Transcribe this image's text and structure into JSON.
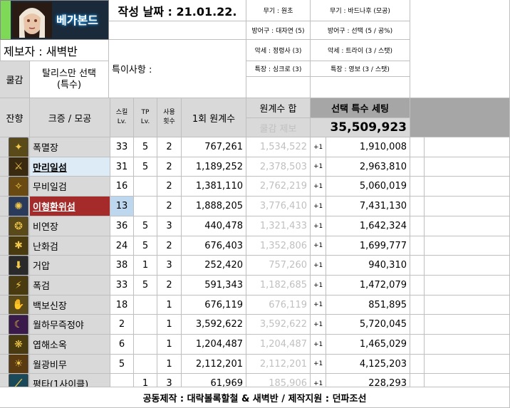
{
  "header": {
    "logo_text": "베가본드",
    "date_label": "작성 날짜 : 21.01.22.",
    "reporter_label": "제보자 : 새벽반",
    "note_label": "특이사항 :",
    "cool_label": "쿨감",
    "cool_value": "탈리스만 선택\n(특수)",
    "equip": [
      {
        "left": "무기 : 원초",
        "right": "무기 : 바드나후 (모공)"
      },
      {
        "left": "방어구 : 대자연 (5)",
        "right": "방어구 : 선택 (5 / 공%)"
      },
      {
        "left": "악세 : 정령사 (3)",
        "right": "악세 : 트라이 (3 / 스탯)"
      },
      {
        "left": "특장 : 싱크로 (3)",
        "right": "특장 : 영보 (3 / 스탯)"
      }
    ]
  },
  "columns": {
    "remain": "잔향",
    "skill": "크증 / 모공",
    "skill_lv": "스킬\nLv.",
    "tp_lv": "TP\nLv.",
    "use_count": "사용\n횟수",
    "one_coeff": "1회 원계수",
    "sum_coeff": "원계수 합",
    "cool_report": "쿨감 제보",
    "selected_set": "선택 특수 세팅",
    "total": "35,509,923"
  },
  "rows": [
    {
      "name": "폭멸장",
      "lv": "33",
      "tp": "5",
      "uses": "2",
      "one": "767,261",
      "sum": "1,534,522",
      "plus": "+1",
      "val": "1,910,008",
      "style": "normal",
      "icon": "✦",
      "icon_bg": "#5a4a1a"
    },
    {
      "name": "만리일섬",
      "lv": "31",
      "tp": "5",
      "uses": "2",
      "one": "1,189,252",
      "sum": "2,378,503",
      "plus": "+1",
      "val": "2,963,810",
      "style": "blue",
      "icon": "⚔",
      "icon_bg": "#3a2a10"
    },
    {
      "name": "무비일검",
      "lv": "16",
      "tp": "",
      "uses": "2",
      "one": "1,381,110",
      "sum": "2,762,219",
      "plus": "+1",
      "val": "5,060,019",
      "style": "normal",
      "icon": "✧",
      "icon_bg": "#6a4a10"
    },
    {
      "name": "이형환위섬",
      "lv": "13",
      "tp": "",
      "uses": "2",
      "one": "1,888,205",
      "sum": "3,776,410",
      "plus": "+1",
      "val": "7,431,130",
      "style": "red",
      "icon": "✺",
      "icon_bg": "#2a3a5a"
    },
    {
      "name": "비연장",
      "lv": "36",
      "tp": "5",
      "uses": "3",
      "one": "440,478",
      "sum": "1,321,433",
      "plus": "+1",
      "val": "1,642,324",
      "style": "normal",
      "icon": "❂",
      "icon_bg": "#5a4a1a"
    },
    {
      "name": "난화검",
      "lv": "24",
      "tp": "5",
      "uses": "2",
      "one": "676,403",
      "sum": "1,352,806",
      "plus": "+1",
      "val": "1,699,777",
      "style": "normal",
      "icon": "✱",
      "icon_bg": "#4a3a10"
    },
    {
      "name": "거압",
      "lv": "38",
      "tp": "1",
      "uses": "3",
      "one": "252,420",
      "sum": "757,260",
      "plus": "+1",
      "val": "940,310",
      "style": "normal",
      "icon": "⬇",
      "icon_bg": "#2a2a2a"
    },
    {
      "name": "폭검",
      "lv": "33",
      "tp": "5",
      "uses": "2",
      "one": "591,343",
      "sum": "1,182,685",
      "plus": "+1",
      "val": "1,472,079",
      "style": "normal",
      "icon": "⚡",
      "icon_bg": "#4a3a10"
    },
    {
      "name": "백보신장",
      "lv": "18",
      "tp": "",
      "uses": "1",
      "one": "676,119",
      "sum": "676,119",
      "plus": "+1",
      "val": "851,895",
      "style": "normal",
      "icon": "✋",
      "icon_bg": "#5a4a1a"
    },
    {
      "name": "월하무즉정야",
      "lv": "2",
      "tp": "",
      "uses": "1",
      "one": "3,592,622",
      "sum": "3,592,622",
      "plus": "+1",
      "val": "5,720,045",
      "style": "normal",
      "icon": "☾",
      "icon_bg": "#3a1a4a"
    },
    {
      "name": "엽해소옥",
      "lv": "6",
      "tp": "",
      "uses": "1",
      "one": "1,204,487",
      "sum": "1,204,487",
      "plus": "+1",
      "val": "1,465,029",
      "style": "normal",
      "icon": "❋",
      "icon_bg": "#4a3a10"
    },
    {
      "name": "월광비무",
      "lv": "5",
      "tp": "",
      "uses": "1",
      "one": "2,112,201",
      "sum": "2,112,201",
      "plus": "+1",
      "val": "4,125,203",
      "style": "normal",
      "icon": "☀",
      "icon_bg": "#5a3a10"
    },
    {
      "name": "평타(1사이클)",
      "lv": "",
      "tp": "1",
      "uses": "3",
      "one": "61,969",
      "sum": "185,906",
      "plus": "+1",
      "val": "228,293",
      "style": "normal",
      "icon": "⟋",
      "icon_bg": "#1a4a5a"
    }
  ],
  "footer": "공동제작 : 대락볼록할철 & 새벽반 / 제작지원 : 던파조선",
  "colors": {
    "gray": "#d9d9d9",
    "dark_gray": "#a6a6a6",
    "blue_highlight": "#ddebf7",
    "red_highlight": "#a52a2a",
    "lv_highlight": "#bdd7ee"
  }
}
